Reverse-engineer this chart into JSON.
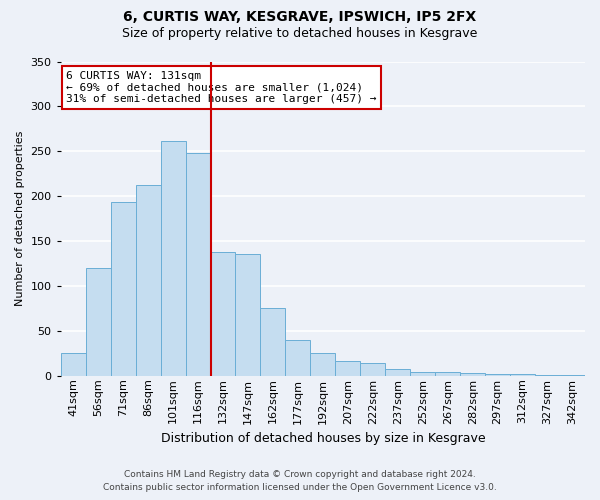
{
  "title1": "6, CURTIS WAY, KESGRAVE, IPSWICH, IP5 2FX",
  "title2": "Size of property relative to detached houses in Kesgrave",
  "xlabel": "Distribution of detached houses by size in Kesgrave",
  "ylabel": "Number of detached properties",
  "bar_labels": [
    "41sqm",
    "56sqm",
    "71sqm",
    "86sqm",
    "101sqm",
    "116sqm",
    "132sqm",
    "147sqm",
    "162sqm",
    "177sqm",
    "192sqm",
    "207sqm",
    "222sqm",
    "237sqm",
    "252sqm",
    "267sqm",
    "282sqm",
    "297sqm",
    "312sqm",
    "327sqm",
    "342sqm"
  ],
  "bar_values": [
    25,
    120,
    193,
    213,
    261,
    248,
    138,
    136,
    75,
    40,
    25,
    16,
    14,
    7,
    4,
    4,
    3,
    2,
    2,
    1,
    1
  ],
  "bar_color": "#c5ddf0",
  "bar_edge_color": "#6aaed6",
  "property_line_bar_idx": 6,
  "annotation_title": "6 CURTIS WAY: 131sqm",
  "annotation_line1": "← 69% of detached houses are smaller (1,024)",
  "annotation_line2": "31% of semi-detached houses are larger (457) →",
  "ylim": [
    0,
    350
  ],
  "yticks": [
    0,
    50,
    100,
    150,
    200,
    250,
    300,
    350
  ],
  "footnote1": "Contains HM Land Registry data © Crown copyright and database right 2024.",
  "footnote2": "Contains public sector information licensed under the Open Government Licence v3.0.",
  "background_color": "#edf1f8",
  "grid_color": "#ffffff",
  "annotation_box_facecolor": "#ffffff",
  "annotation_box_edgecolor": "#cc0000",
  "line_color": "#cc0000",
  "title1_fontsize": 10,
  "title2_fontsize": 9,
  "ylabel_fontsize": 8,
  "xlabel_fontsize": 9,
  "tick_fontsize": 8,
  "ann_fontsize": 8,
  "footnote_fontsize": 6.5
}
